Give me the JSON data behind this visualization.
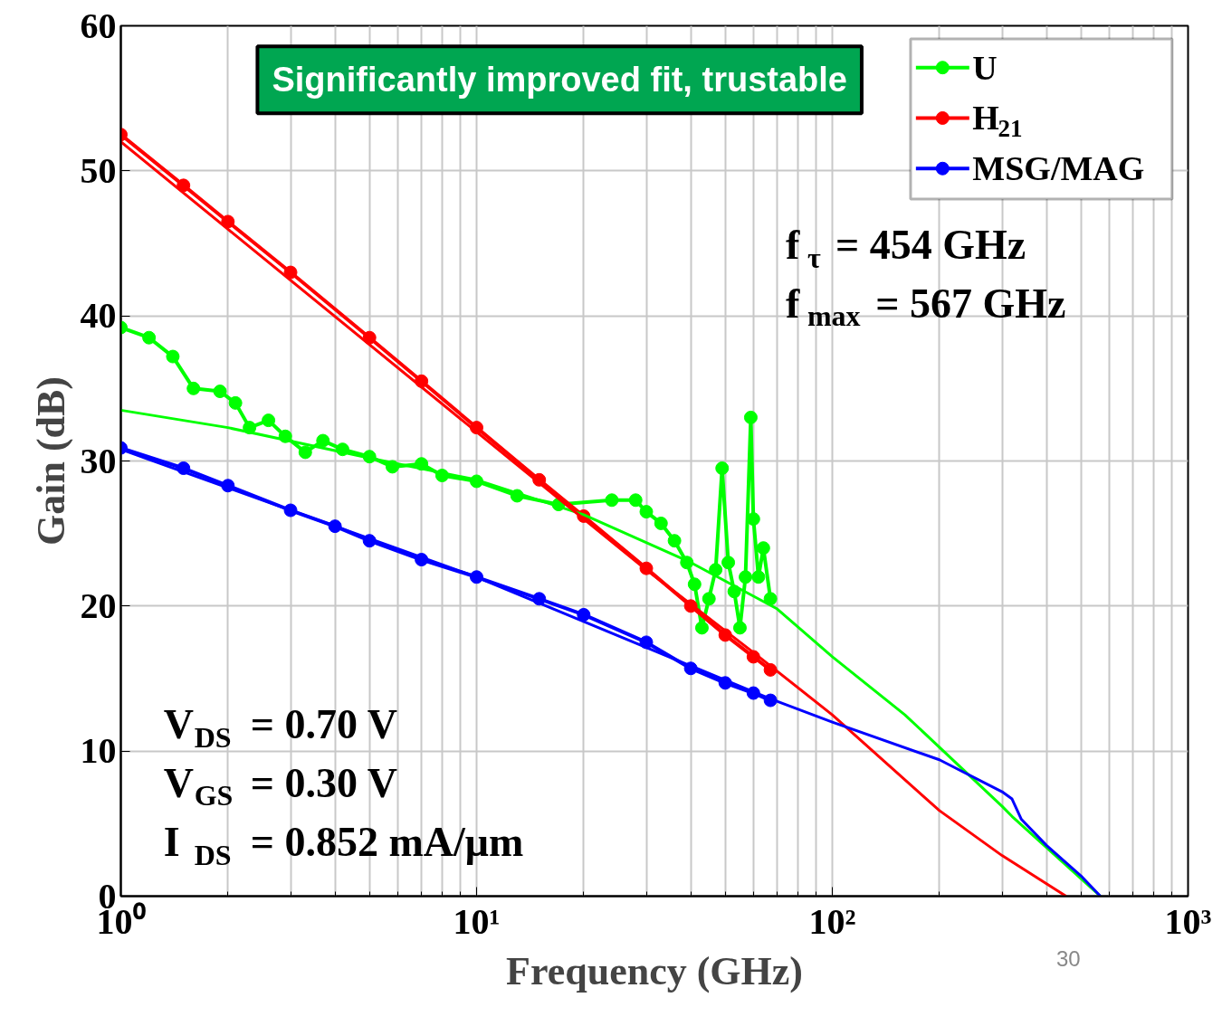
{
  "chart_data": {
    "type": "line",
    "xlabel": "Frequency (GHz)",
    "ylabel": "Gain (dB)",
    "log": "x",
    "xlim": [
      1,
      1000
    ],
    "ylim": [
      0,
      60
    ],
    "xticks": [
      {
        "value": 1,
        "label": "10⁰"
      },
      {
        "value": 10,
        "label": "10¹"
      },
      {
        "value": 100,
        "label": "10²"
      },
      {
        "value": 1000,
        "label": "10³"
      }
    ],
    "yticks": [
      0,
      10,
      20,
      30,
      40,
      50,
      60
    ],
    "grid": true,
    "legend": "top right",
    "series": [
      {
        "name": "U",
        "color": "#00ff00",
        "marker": "circle",
        "x": [
          1,
          1.2,
          1.4,
          1.6,
          1.9,
          2.1,
          2.3,
          2.6,
          2.9,
          3.3,
          3.7,
          4.2,
          5,
          5.8,
          7,
          8,
          10,
          13,
          17,
          24,
          28,
          30,
          33,
          36,
          39,
          41,
          43,
          45,
          47,
          49,
          51,
          53,
          55,
          57,
          59,
          60,
          62,
          64,
          67
        ],
        "values": [
          39.2,
          38.5,
          37.2,
          35,
          34.8,
          34,
          32.3,
          32.8,
          31.7,
          30.6,
          31.4,
          30.8,
          30.3,
          29.6,
          29.8,
          29,
          28.6,
          27.6,
          27,
          27.3,
          27.3,
          26.5,
          25.7,
          24.5,
          23,
          21.5,
          18.5,
          20.5,
          22.5,
          29.5,
          23,
          21,
          18.5,
          22,
          33,
          26,
          22,
          24,
          20.5
        ]
      },
      {
        "name": "H$_{21}$",
        "color": "#ff0000",
        "marker": "circle",
        "x": [
          1,
          1.5,
          2,
          3,
          5,
          7,
          10,
          15,
          20,
          30,
          40,
          50,
          60,
          67
        ],
        "values": [
          52.5,
          49,
          46.5,
          43,
          38.5,
          35.5,
          32.3,
          28.7,
          26.2,
          22.6,
          20,
          18,
          16.5,
          15.6
        ]
      },
      {
        "name": "MSG/MAG",
        "color": "#0000ff",
        "marker": "circle",
        "x": [
          1,
          1.5,
          2,
          3,
          4,
          5,
          7,
          10,
          15,
          20,
          30,
          40,
          50,
          60,
          67
        ],
        "values": [
          30.9,
          29.5,
          28.3,
          26.6,
          25.5,
          24.5,
          23.2,
          22,
          20.5,
          19.4,
          17.5,
          15.7,
          14.7,
          14,
          13.5
        ]
      },
      {
        "color": "#00ff00",
        "marker": "none",
        "x": [
          1,
          2,
          5,
          10,
          20,
          40,
          70,
          100,
          160,
          300,
          320,
          567
        ],
        "values": [
          33.5,
          32.3,
          30.2,
          28.7,
          26.3,
          23,
          19.8,
          16.5,
          12.5,
          6.2,
          5.5,
          0
        ]
      },
      {
        "color": "#ff0000",
        "marker": "none",
        "x": [
          1,
          10,
          30,
          60,
          100,
          200,
          300,
          454
        ],
        "values": [
          52,
          32,
          22.5,
          16.8,
          12.5,
          5.9,
          2.8,
          0
        ]
      },
      {
        "color": "#0000ff",
        "marker": "none",
        "x": [
          1,
          10,
          67,
          100,
          200,
          300,
          320,
          340,
          400,
          500,
          567
        ],
        "values": [
          30.8,
          22,
          13.6,
          12,
          9.4,
          7.2,
          6.7,
          5.3,
          3.5,
          1.4,
          0
        ]
      }
    ],
    "annotations": [
      "Significantly improved fit, trustable",
      "f$_{τ}$ = 454 GHz",
      "f$_{max}$ = 567 GHz",
      "V$_{DS}$ = 0.70 V",
      "V$_{GS}$ = 0.30 V",
      "I$_{DS}$ = 0.852 mA/μm",
      "30"
    ]
  }
}
